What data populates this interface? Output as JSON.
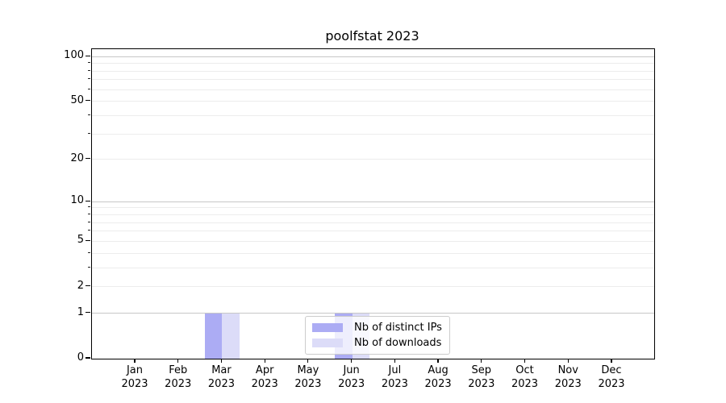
{
  "chart_data": {
    "type": "bar",
    "title": "poolfstat 2023",
    "x_tick_months": [
      "Jan",
      "Feb",
      "Mar",
      "Apr",
      "May",
      "Jun",
      "Jul",
      "Aug",
      "Sep",
      "Oct",
      "Nov",
      "Dec"
    ],
    "x_tick_year": "2023",
    "series": [
      {
        "name": "Nb of distinct IPs",
        "color": "#acacf4",
        "values": [
          0,
          0,
          1,
          0,
          0,
          1,
          0,
          0,
          0,
          0,
          0,
          0
        ]
      },
      {
        "name": "Nb of downloads",
        "color": "#dcdcf8",
        "values": [
          0,
          0,
          1,
          0,
          0,
          1,
          0,
          0,
          0,
          0,
          0,
          0
        ]
      }
    ],
    "yscale": "log1p",
    "ylim": [
      0,
      112
    ],
    "y_tick_labels": [
      0,
      1,
      2,
      5,
      10,
      20,
      50,
      100
    ],
    "y_major_grid": [
      1,
      10,
      100
    ],
    "y_minor_grid": [
      2,
      3,
      4,
      5,
      6,
      7,
      8,
      9,
      20,
      30,
      40,
      50,
      60,
      70,
      80,
      90
    ],
    "grid": true,
    "legend": {
      "location": "lower center",
      "framed": true
    }
  },
  "style": {
    "major_grid_color": "#c7c7c7",
    "minor_grid_color": "#ececec",
    "spine_color": "#000000",
    "background": "#ffffff"
  }
}
